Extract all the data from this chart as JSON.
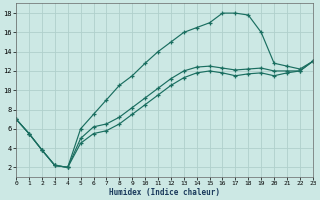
{
  "xlabel": "Humidex (Indice chaleur)",
  "bg_color": "#cce8e4",
  "grid_color": "#b0d0cc",
  "line_color": "#1a6e60",
  "xlim": [
    0,
    23
  ],
  "ylim": [
    1,
    19
  ],
  "xtick_vals": [
    0,
    1,
    2,
    3,
    4,
    5,
    6,
    7,
    8,
    9,
    10,
    11,
    12,
    13,
    14,
    15,
    16,
    17,
    18,
    19,
    20,
    21,
    22,
    23
  ],
  "ytick_vals": [
    2,
    4,
    6,
    8,
    10,
    12,
    14,
    16,
    18
  ],
  "line1": {
    "x": [
      0,
      1,
      2,
      3,
      4,
      5,
      6,
      7,
      8,
      9,
      10,
      11,
      12,
      13,
      14,
      15,
      16,
      17,
      18,
      19,
      20,
      21,
      22,
      23
    ],
    "y": [
      7.0,
      5.5,
      3.8,
      2.2,
      2.0,
      6.0,
      7.5,
      9.0,
      10.5,
      11.5,
      12.8,
      14.0,
      15.0,
      16.0,
      16.5,
      17.0,
      18.0,
      18.0,
      17.8,
      16.0,
      12.8,
      12.5,
      12.2,
      13.0
    ]
  },
  "line2": {
    "x": [
      0,
      1,
      2,
      3,
      4,
      5,
      6,
      7,
      8,
      9,
      10,
      11,
      12,
      13,
      14,
      15,
      16,
      17,
      18,
      19,
      20,
      21,
      22,
      23
    ],
    "y": [
      7.0,
      5.5,
      3.8,
      2.2,
      2.0,
      5.0,
      6.2,
      6.5,
      7.2,
      8.2,
      9.2,
      10.2,
      11.2,
      12.0,
      12.4,
      12.5,
      12.3,
      12.1,
      12.2,
      12.3,
      12.0,
      12.0,
      12.0,
      13.0
    ]
  },
  "line3": {
    "x": [
      0,
      1,
      2,
      3,
      4,
      5,
      6,
      7,
      8,
      9,
      10,
      11,
      12,
      13,
      14,
      15,
      16,
      17,
      18,
      19,
      20,
      21,
      22,
      23
    ],
    "y": [
      7.0,
      5.5,
      3.8,
      2.2,
      2.0,
      4.5,
      5.5,
      5.8,
      6.5,
      7.5,
      8.5,
      9.5,
      10.5,
      11.3,
      11.8,
      12.0,
      11.8,
      11.5,
      11.7,
      11.8,
      11.5,
      11.8,
      12.0,
      13.0
    ]
  }
}
